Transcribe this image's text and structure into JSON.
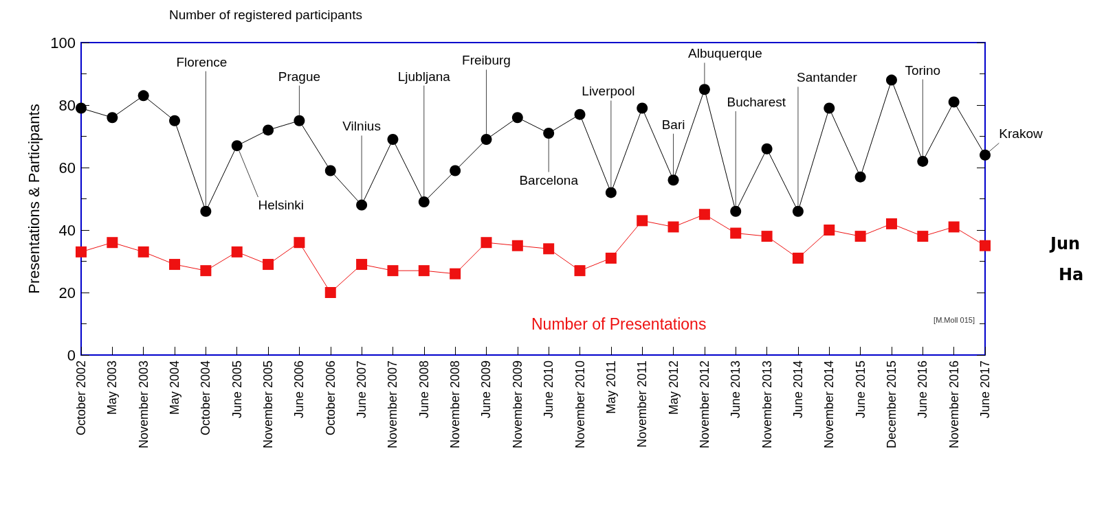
{
  "chart_data": {
    "type": "line",
    "ylabel": "Presentations & Participants",
    "categories": [
      "October 2002",
      "May 2003",
      "November 2003",
      "May 2004",
      "October 2004",
      "June 2005",
      "November 2005",
      "June 2006",
      "October 2006",
      "June 2007",
      "November 2007",
      "June 2008",
      "November 2008",
      "June 2009",
      "November 2009",
      "June 2010",
      "November 2010",
      "May 2011",
      "November 2011",
      "May 2012",
      "November 2012",
      "June 2013",
      "November 2013",
      "June 2014",
      "November 2014",
      "June 2015",
      "December 2015",
      "June 2016",
      "November 2016",
      "June 2017"
    ],
    "series": [
      {
        "name": "Number of registered participants",
        "color": "#000000",
        "marker": "circle",
        "values": [
          79,
          76,
          83,
          75,
          46,
          67,
          72,
          75,
          59,
          48,
          69,
          49,
          59,
          69,
          76,
          71,
          77,
          52,
          79,
          56,
          85,
          46,
          66,
          46,
          79,
          57,
          88,
          62,
          81,
          64
        ]
      },
      {
        "name": "Number of Presentations",
        "color": "#ee1111",
        "marker": "square",
        "values": [
          33,
          36,
          33,
          29,
          27,
          33,
          29,
          36,
          20,
          29,
          27,
          27,
          26,
          36,
          35,
          34,
          27,
          31,
          43,
          41,
          45,
          39,
          38,
          31,
          40,
          38,
          42,
          38,
          41,
          35
        ]
      }
    ],
    "ylim": [
      0,
      100
    ],
    "yticks": [
      0,
      20,
      40,
      60,
      80,
      100
    ],
    "legend": false,
    "annotations": [
      {
        "text": "Florence",
        "x": "October 2004",
        "y": 46
      },
      {
        "text": "Helsinki",
        "x": "June 2005",
        "y": 67
      },
      {
        "text": "Prague",
        "x": "June 2006",
        "y": 75
      },
      {
        "text": "Vilnius",
        "x": "June 2007",
        "y": 48
      },
      {
        "text": "Ljubljana",
        "x": "June 2008",
        "y": 49
      },
      {
        "text": "Freiburg",
        "x": "June 2009",
        "y": 69
      },
      {
        "text": "Barcelona",
        "x": "June 2010",
        "y": 71
      },
      {
        "text": "Liverpool",
        "x": "May 2011",
        "y": 52
      },
      {
        "text": "Bari",
        "x": "May 2012",
        "y": 56
      },
      {
        "text": "Albuquerque",
        "x": "November 2012",
        "y": 85
      },
      {
        "text": "Bucharest",
        "x": "June 2013",
        "y": 46
      },
      {
        "text": "Santander",
        "x": "June 2014",
        "y": 46
      },
      {
        "text": "Torino",
        "x": "June 2016",
        "y": 62
      },
      {
        "text": "Krakow",
        "x": "June 2017",
        "y": 64
      },
      "[M.Moll 015]",
      "Jun",
      "Ha"
    ]
  }
}
